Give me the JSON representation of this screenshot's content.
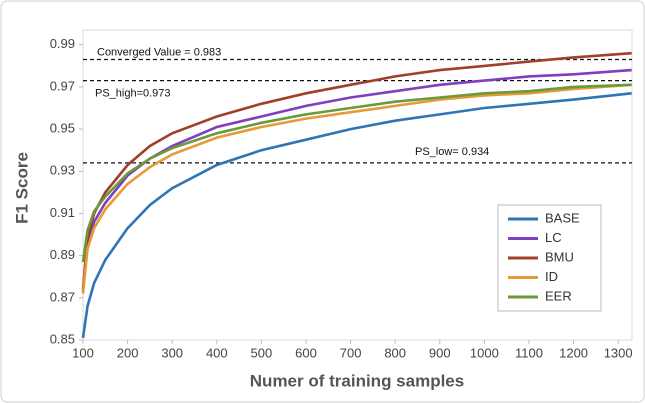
{
  "chart_data": {
    "type": "line",
    "y_label": "F1 Score",
    "x_label": "Numer of training samples",
    "x": [
      100,
      110,
      125,
      150,
      200,
      250,
      300,
      400,
      500,
      600,
      700,
      800,
      900,
      1000,
      1100,
      1200,
      1330
    ],
    "series": [
      {
        "name": "BASE",
        "color": "#2e75b6",
        "values": [
          0.851,
          0.866,
          0.877,
          0.888,
          0.903,
          0.914,
          0.922,
          0.933,
          0.94,
          0.945,
          0.95,
          0.954,
          0.957,
          0.96,
          0.962,
          0.964,
          0.967
        ]
      },
      {
        "name": "LC",
        "color": "#7f3fbf",
        "values": [
          0.873,
          0.895,
          0.906,
          0.915,
          0.928,
          0.936,
          0.942,
          0.951,
          0.956,
          0.961,
          0.965,
          0.968,
          0.971,
          0.973,
          0.975,
          0.976,
          0.978
        ]
      },
      {
        "name": "BMU",
        "color": "#a0402a",
        "values": [
          0.874,
          0.898,
          0.91,
          0.92,
          0.933,
          0.942,
          0.948,
          0.956,
          0.962,
          0.967,
          0.971,
          0.975,
          0.978,
          0.98,
          0.982,
          0.984,
          0.986
        ]
      },
      {
        "name": "ID",
        "color": "#e69a3a",
        "values": [
          0.872,
          0.893,
          0.903,
          0.912,
          0.924,
          0.932,
          0.938,
          0.946,
          0.951,
          0.955,
          0.958,
          0.961,
          0.964,
          0.966,
          0.967,
          0.969,
          0.971
        ]
      },
      {
        "name": "EER",
        "color": "#6a9a3a",
        "values": [
          0.887,
          0.902,
          0.911,
          0.918,
          0.929,
          0.936,
          0.941,
          0.948,
          0.953,
          0.957,
          0.96,
          0.963,
          0.965,
          0.967,
          0.968,
          0.97,
          0.971
        ]
      }
    ],
    "reference_lines": [
      {
        "label": "Converged Value = 0.983",
        "value": 0.983
      },
      {
        "label": "PS_high=0.973",
        "value": 0.973
      },
      {
        "label": "PS_low= 0.934",
        "value": 0.934
      }
    ],
    "xlim": [
      100,
      1331
    ],
    "xticks": [
      100,
      200,
      300,
      400,
      500,
      600,
      700,
      800,
      900,
      1000,
      1100,
      1200,
      1300
    ],
    "ylim": [
      0.85,
      0.997
    ],
    "yticks": [
      0.85,
      0.87,
      0.89,
      0.91,
      0.93,
      0.95,
      0.97,
      0.99
    ],
    "legend": "lower right"
  }
}
